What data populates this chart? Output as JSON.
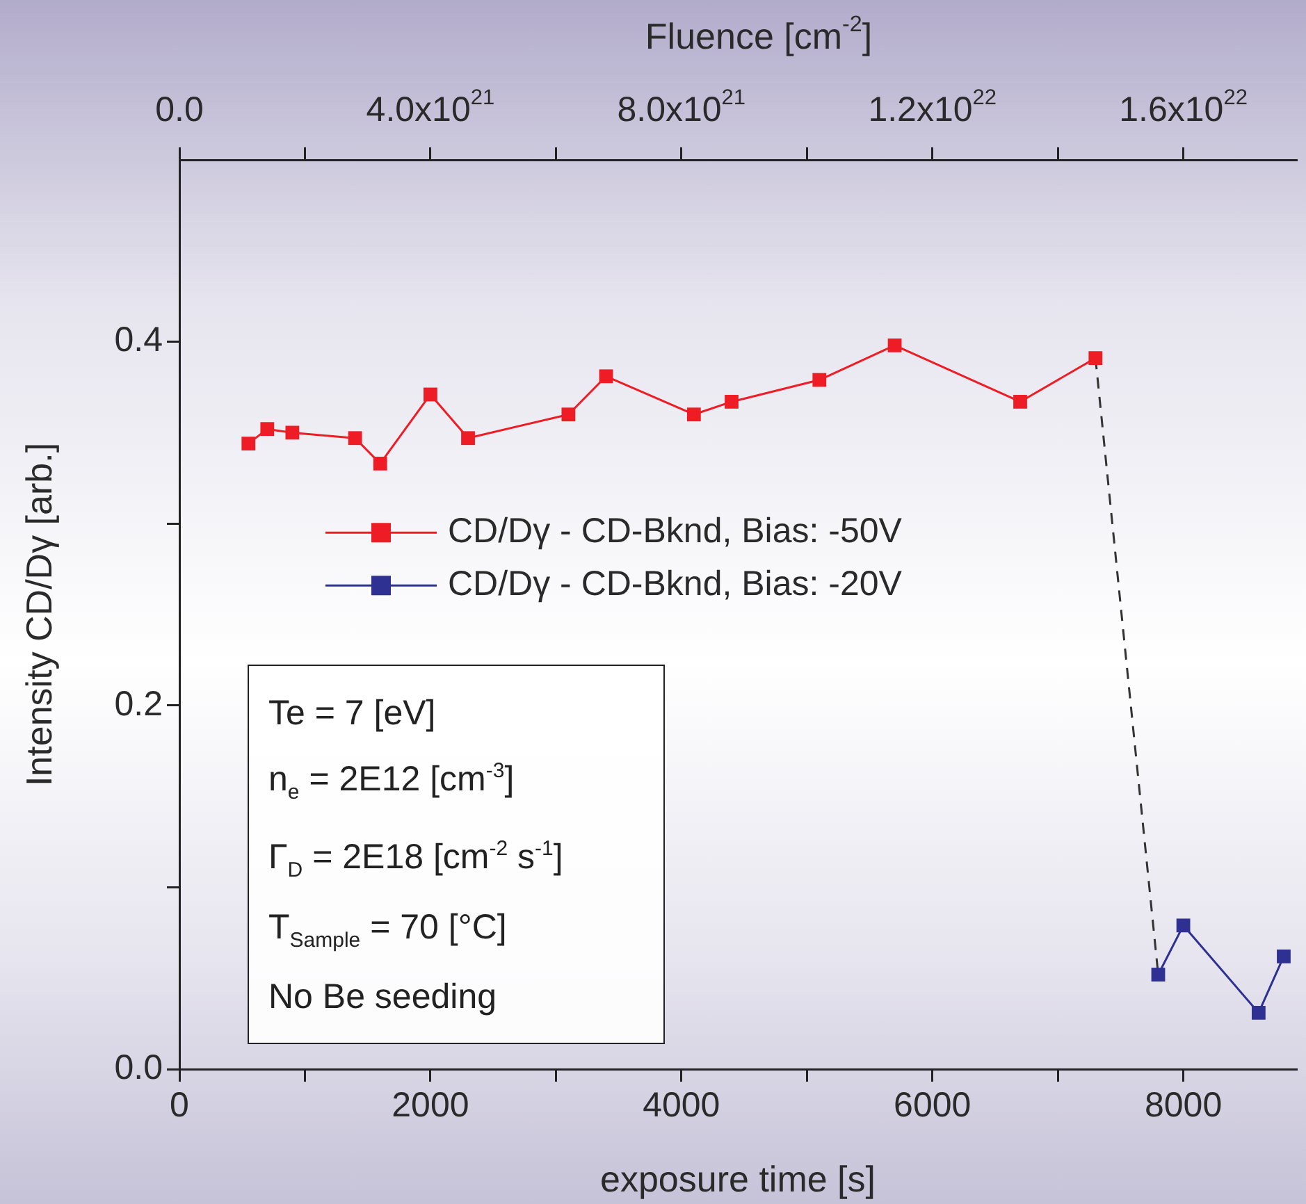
{
  "chart_data": {
    "type": "line",
    "xlabel": "exposure time [s]",
    "ylabel": "Intensity CD/Dγ [arb.]",
    "x2label": "Fluence [cm$^{-2}$]",
    "xlim": [
      0,
      8900
    ],
    "ylim": [
      0,
      0.5
    ],
    "x2lim": [
      0,
      1.78e+22
    ],
    "xticks": [
      0,
      {
        "value": 1000,
        "label": null
      },
      2000,
      {
        "value": 3000,
        "label": null
      },
      4000,
      {
        "value": 5000,
        "label": null
      },
      6000,
      {
        "value": 7000,
        "label": null
      },
      8000
    ],
    "yticks": [
      {
        "value": 0,
        "label": "0.0"
      },
      {
        "value": 0.1,
        "label": null
      },
      0.2,
      {
        "value": 0.3,
        "label": null
      },
      0.4
    ],
    "x2ticks": [
      {
        "value": 0,
        "label": "0.0"
      },
      {
        "value": 2e+21,
        "label": null
      },
      {
        "value": 4e+21,
        "label": "4.0x10$^{21}$"
      },
      {
        "value": 6e+21,
        "label": null
      },
      {
        "value": 8e+21,
        "label": "8.0x10$^{21}$"
      },
      {
        "value": 1e+22,
        "label": null
      },
      {
        "value": 1.2e+22,
        "label": "1.2x10$^{22}$"
      },
      {
        "value": 1.4e+22,
        "label": null
      },
      {
        "value": 1.6e+22,
        "label": "1.6x10$^{22}$"
      }
    ],
    "grid": false,
    "legend": "center left",
    "marker": "square",
    "series": [
      {
        "name": "CD/Dγ - CD-Bknd, Bias: -50V",
        "color": "#ee1c24",
        "line_style": "solid",
        "x": [
          550,
          700,
          900,
          1400,
          1600,
          2000,
          2300,
          3100,
          3400,
          4100,
          4400,
          5100,
          5700,
          6700,
          7300
        ],
        "values": [
          0.344,
          0.352,
          0.35,
          0.347,
          0.333,
          0.371,
          0.347,
          0.36,
          0.381,
          0.36,
          0.367,
          0.379,
          0.398,
          0.367,
          0.391
        ]
      },
      {
        "name": "CD/Dγ - CD-Bknd, Bias: -20V",
        "color": "#2e3192",
        "line_style": "solid",
        "x": [
          7800,
          8000,
          8600,
          8800
        ],
        "values": [
          0.052,
          0.079,
          0.031,
          0.062
        ]
      },
      {
        "color": "#333333",
        "line_style": "dashed",
        "marker": "none",
        "x": [
          7300,
          7800
        ],
        "values": [
          0.391,
          0.052
        ]
      }
    ],
    "annotations": [
      "Te = 7 [eV]",
      "n$_{e}$ = 2E12 [cm$^{-3}$]",
      "Γ$_{D}$ = 2E18 [cm$^{-2}$ s$^{-1}$]",
      "T$_{Sample}$ = 70 [°C]",
      "No Be seeding"
    ]
  }
}
